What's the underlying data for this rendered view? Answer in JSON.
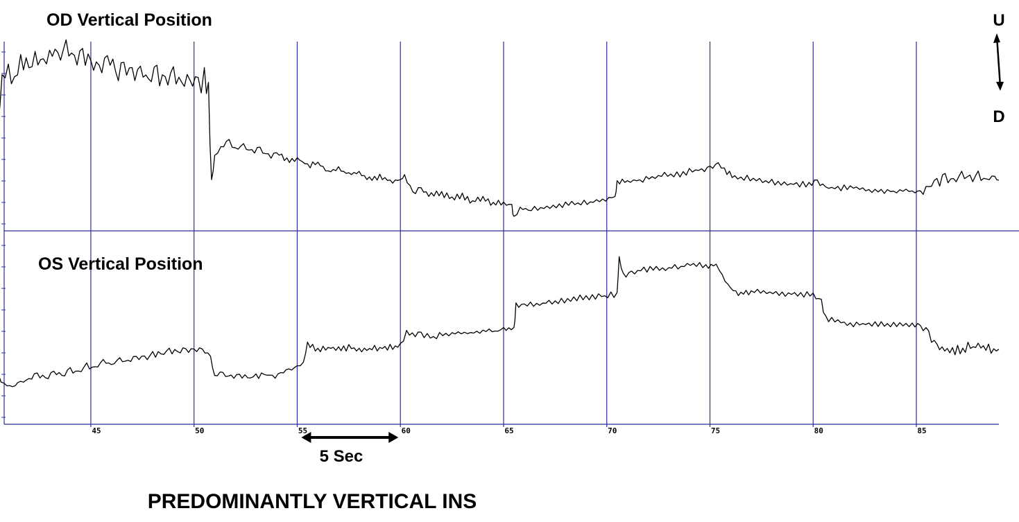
{
  "chart_data": {
    "type": "line",
    "panels": [
      {
        "title": "OD Vertical Position",
        "series": [
          {
            "points": [
              [
                40.2,
                0.72
              ],
              [
                40.5,
                0.55
              ],
              [
                40.7,
                0.8
              ],
              [
                41.0,
                0.88
              ],
              [
                41.3,
                0.78
              ],
              [
                41.6,
                0.92
              ],
              [
                42.0,
                0.86
              ],
              [
                42.3,
                0.94
              ],
              [
                42.7,
                0.88
              ],
              [
                43.0,
                0.95
              ],
              [
                43.4,
                0.89
              ],
              [
                43.8,
                0.96
              ],
              [
                44.2,
                0.9
              ],
              [
                44.6,
                0.96
              ],
              [
                45.0,
                0.89
              ],
              [
                45.4,
                0.87
              ],
              [
                45.8,
                0.91
              ],
              [
                46.2,
                0.83
              ],
              [
                46.6,
                0.88
              ],
              [
                47.0,
                0.82
              ],
              [
                47.4,
                0.86
              ],
              [
                47.8,
                0.8
              ],
              [
                48.2,
                0.84
              ],
              [
                48.6,
                0.79
              ],
              [
                49.0,
                0.82
              ],
              [
                49.4,
                0.77
              ],
              [
                49.8,
                0.79
              ],
              [
                50.2,
                0.76
              ],
              [
                50.5,
                0.81
              ],
              [
                50.7,
                0.74
              ],
              [
                50.85,
                0.22
              ],
              [
                51.0,
                0.38
              ],
              [
                51.3,
                0.43
              ],
              [
                51.7,
                0.46
              ],
              [
                52.0,
                0.41
              ],
              [
                52.4,
                0.44
              ],
              [
                52.8,
                0.4
              ],
              [
                53.2,
                0.42
              ],
              [
                53.6,
                0.38
              ],
              [
                54.0,
                0.4
              ],
              [
                54.5,
                0.36
              ],
              [
                55.0,
                0.37
              ],
              [
                55.5,
                0.33
              ],
              [
                56.0,
                0.34
              ],
              [
                56.5,
                0.3
              ],
              [
                57.0,
                0.31
              ],
              [
                57.5,
                0.28
              ],
              [
                58.0,
                0.29
              ],
              [
                58.5,
                0.26
              ],
              [
                59.0,
                0.27
              ],
              [
                59.5,
                0.25
              ],
              [
                60.0,
                0.25
              ],
              [
                60.2,
                0.28
              ],
              [
                60.6,
                0.18
              ],
              [
                61.0,
                0.2
              ],
              [
                61.5,
                0.17
              ],
              [
                62.0,
                0.18
              ],
              [
                62.5,
                0.15
              ],
              [
                63.0,
                0.17
              ],
              [
                63.5,
                0.13
              ],
              [
                64.0,
                0.15
              ],
              [
                64.5,
                0.12
              ],
              [
                65.0,
                0.13
              ],
              [
                65.4,
                0.1
              ],
              [
                65.5,
                0.05
              ],
              [
                65.8,
                0.1
              ],
              [
                66.2,
                0.08
              ],
              [
                66.8,
                0.1
              ],
              [
                67.4,
                0.11
              ],
              [
                68.0,
                0.12
              ],
              [
                68.6,
                0.12
              ],
              [
                69.2,
                0.13
              ],
              [
                69.8,
                0.14
              ],
              [
                70.4,
                0.16
              ],
              [
                70.5,
                0.24
              ],
              [
                71.0,
                0.24
              ],
              [
                71.6,
                0.25
              ],
              [
                72.2,
                0.26
              ],
              [
                72.8,
                0.28
              ],
              [
                73.4,
                0.28
              ],
              [
                74.0,
                0.3
              ],
              [
                74.6,
                0.31
              ],
              [
                75.0,
                0.31
              ],
              [
                75.4,
                0.34
              ],
              [
                75.7,
                0.3
              ],
              [
                76.2,
                0.27
              ],
              [
                76.8,
                0.26
              ],
              [
                77.4,
                0.25
              ],
              [
                78.0,
                0.24
              ],
              [
                78.6,
                0.23
              ],
              [
                79.2,
                0.23
              ],
              [
                79.8,
                0.23
              ],
              [
                80.2,
                0.25
              ],
              [
                80.6,
                0.21
              ],
              [
                81.2,
                0.21
              ],
              [
                81.8,
                0.21
              ],
              [
                82.4,
                0.2
              ],
              [
                83.0,
                0.19
              ],
              [
                83.6,
                0.19
              ],
              [
                84.2,
                0.19
              ],
              [
                84.8,
                0.19
              ],
              [
                85.2,
                0.18
              ],
              [
                85.6,
                0.21
              ],
              [
                86.0,
                0.23
              ],
              [
                86.4,
                0.27
              ],
              [
                86.8,
                0.25
              ],
              [
                87.2,
                0.28
              ],
              [
                87.6,
                0.25
              ],
              [
                88.0,
                0.28
              ],
              [
                88.4,
                0.25
              ],
              [
                88.8,
                0.27
              ],
              [
                89.0,
                0.25
              ]
            ]
          }
        ]
      },
      {
        "title": "OS Vertical Position",
        "series": [
          {
            "points": [
              [
                40.2,
                0.2
              ],
              [
                40.5,
                0.23
              ],
              [
                40.8,
                0.18
              ],
              [
                41.2,
                0.16
              ],
              [
                41.6,
                0.19
              ],
              [
                42.0,
                0.2
              ],
              [
                42.4,
                0.23
              ],
              [
                42.8,
                0.2
              ],
              [
                43.2,
                0.24
              ],
              [
                43.6,
                0.22
              ],
              [
                44.0,
                0.26
              ],
              [
                44.4,
                0.24
              ],
              [
                44.8,
                0.28
              ],
              [
                45.2,
                0.26
              ],
              [
                45.6,
                0.3
              ],
              [
                46.0,
                0.28
              ],
              [
                46.4,
                0.31
              ],
              [
                46.8,
                0.3
              ],
              [
                47.2,
                0.33
              ],
              [
                47.6,
                0.32
              ],
              [
                48.0,
                0.34
              ],
              [
                48.4,
                0.34
              ],
              [
                48.8,
                0.36
              ],
              [
                49.2,
                0.35
              ],
              [
                49.6,
                0.37
              ],
              [
                50.0,
                0.36
              ],
              [
                50.4,
                0.37
              ],
              [
                50.8,
                0.33
              ],
              [
                51.0,
                0.22
              ],
              [
                51.4,
                0.23
              ],
              [
                51.8,
                0.21
              ],
              [
                52.2,
                0.22
              ],
              [
                52.6,
                0.21
              ],
              [
                53.0,
                0.22
              ],
              [
                53.4,
                0.23
              ],
              [
                53.8,
                0.22
              ],
              [
                54.2,
                0.24
              ],
              [
                54.6,
                0.25
              ],
              [
                55.0,
                0.27
              ],
              [
                55.3,
                0.29
              ],
              [
                55.5,
                0.4
              ],
              [
                56.0,
                0.37
              ],
              [
                56.5,
                0.38
              ],
              [
                57.0,
                0.37
              ],
              [
                57.5,
                0.38
              ],
              [
                58.0,
                0.37
              ],
              [
                58.5,
                0.37
              ],
              [
                59.0,
                0.38
              ],
              [
                59.5,
                0.38
              ],
              [
                60.0,
                0.39
              ],
              [
                60.3,
                0.46
              ],
              [
                61.0,
                0.45
              ],
              [
                61.6,
                0.44
              ],
              [
                62.2,
                0.45
              ],
              [
                62.8,
                0.46
              ],
              [
                63.4,
                0.46
              ],
              [
                64.0,
                0.47
              ],
              [
                64.6,
                0.47
              ],
              [
                65.0,
                0.48
              ],
              [
                65.5,
                0.48
              ],
              [
                65.6,
                0.61
              ],
              [
                66.0,
                0.61
              ],
              [
                66.6,
                0.62
              ],
              [
                67.2,
                0.63
              ],
              [
                67.8,
                0.64
              ],
              [
                68.4,
                0.65
              ],
              [
                69.0,
                0.66
              ],
              [
                69.6,
                0.66
              ],
              [
                70.2,
                0.67
              ],
              [
                70.5,
                0.68
              ],
              [
                70.6,
                0.87
              ],
              [
                70.8,
                0.78
              ],
              [
                71.2,
                0.8
              ],
              [
                71.8,
                0.81
              ],
              [
                72.4,
                0.82
              ],
              [
                73.0,
                0.82
              ],
              [
                73.6,
                0.83
              ],
              [
                74.2,
                0.84
              ],
              [
                74.8,
                0.83
              ],
              [
                75.3,
                0.84
              ],
              [
                75.6,
                0.78
              ],
              [
                76.0,
                0.7
              ],
              [
                76.5,
                0.68
              ],
              [
                77.0,
                0.69
              ],
              [
                77.6,
                0.68
              ],
              [
                78.2,
                0.68
              ],
              [
                78.8,
                0.68
              ],
              [
                79.4,
                0.67
              ],
              [
                80.0,
                0.68
              ],
              [
                80.4,
                0.63
              ],
              [
                80.6,
                0.54
              ],
              [
                81.2,
                0.52
              ],
              [
                81.8,
                0.51
              ],
              [
                82.4,
                0.51
              ],
              [
                83.0,
                0.51
              ],
              [
                83.6,
                0.51
              ],
              [
                84.2,
                0.51
              ],
              [
                84.8,
                0.51
              ],
              [
                85.2,
                0.5
              ],
              [
                85.6,
                0.46
              ],
              [
                86.0,
                0.38
              ],
              [
                86.5,
                0.36
              ],
              [
                87.0,
                0.37
              ],
              [
                87.5,
                0.38
              ],
              [
                88.0,
                0.38
              ],
              [
                88.5,
                0.37
              ],
              [
                89.0,
                0.37
              ]
            ]
          }
        ]
      }
    ],
    "x_ticks": [
      45,
      50,
      55,
      60,
      65,
      70,
      75,
      80,
      85
    ],
    "xlim": [
      40.8,
      89.0
    ],
    "ylim": [
      0,
      1
    ],
    "grid": true,
    "scale_bar": {
      "label": "5 Sec",
      "from": 55.2,
      "to": 59.9
    },
    "direction_indicator": {
      "up": "U",
      "down": "D"
    },
    "caption": "PREDOMINANTLY VERTICAL INS"
  },
  "colors": {
    "grid": "#2b2b9e",
    "trace": "#000000",
    "background": "#ffffff"
  }
}
